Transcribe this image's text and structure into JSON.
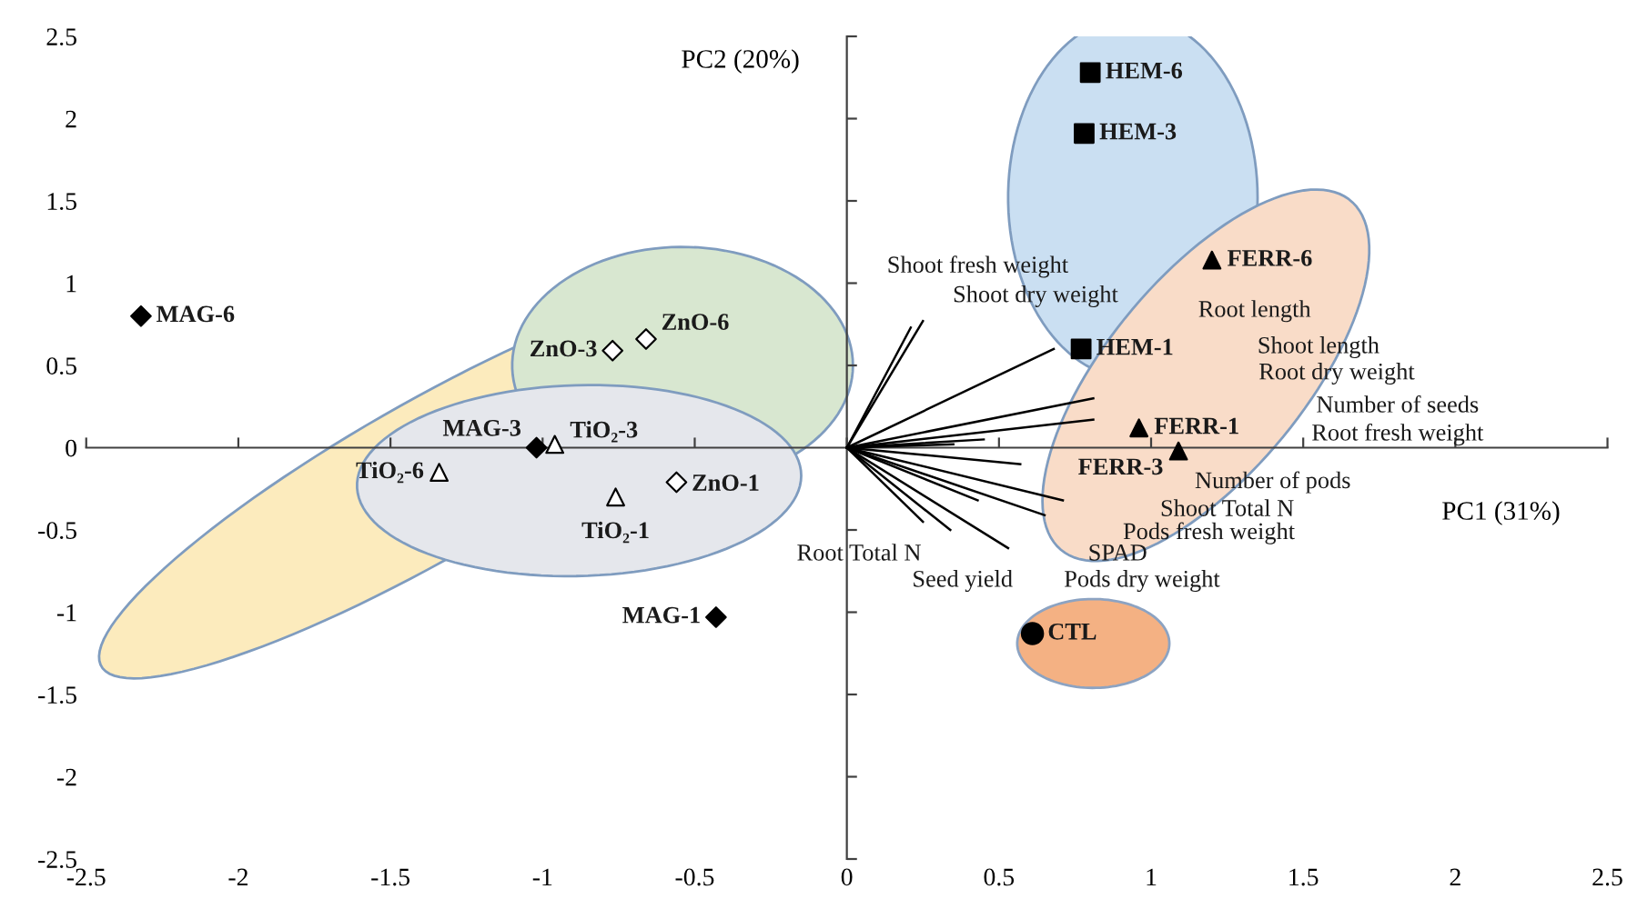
{
  "chart_data": {
    "type": "scatter",
    "xlabel": "PC1 (31%)",
    "ylabel": "PC2 (20%)",
    "xlim": [
      -2.5,
      2.5
    ],
    "ylim": [
      -2.5,
      2.5
    ],
    "xticks": [
      -2.5,
      -2,
      -1.5,
      -1,
      -0.5,
      0,
      0.5,
      1,
      1.5,
      2,
      2.5
    ],
    "yticks": [
      -2.5,
      -2,
      -1.5,
      -1,
      -0.5,
      0,
      0.5,
      1,
      1.5,
      2,
      2.5
    ],
    "legend": false,
    "series": [
      {
        "marker": "diamond",
        "color": "#000000",
        "x": [
          -2.32,
          -1.02,
          -0.43
        ],
        "values": [
          0.8,
          0.0,
          -1.03
        ]
      },
      {
        "marker": "triangle",
        "color": "#ffffff",
        "x": [
          -0.96,
          -1.34,
          -0.76
        ],
        "values": [
          0.02,
          -0.15,
          -0.3
        ]
      },
      {
        "marker": "diamond",
        "color": "#ffffff",
        "x": [
          -0.77,
          -0.66,
          -0.56
        ],
        "values": [
          0.59,
          0.66,
          -0.21
        ]
      },
      {
        "marker": "square",
        "color": "#000000",
        "x": [
          0.8,
          0.78,
          0.77
        ],
        "values": [
          2.28,
          1.91,
          0.6
        ]
      },
      {
        "marker": "triangle",
        "color": "#000000",
        "x": [
          1.2,
          0.96,
          1.09
        ],
        "values": [
          1.14,
          0.12,
          -0.02
        ]
      },
      {
        "marker": "circle",
        "color": "#000000",
        "x": [
          0.61
        ],
        "values": [
          -1.13
        ]
      },
      {
        "type": "line",
        "color": "#000000",
        "x": [
          0,
          0.21
        ],
        "values": [
          0,
          0.73
        ]
      },
      {
        "type": "line",
        "color": "#000000",
        "x": [
          0,
          0.25
        ],
        "values": [
          0,
          0.77
        ]
      },
      {
        "type": "line",
        "color": "#000000",
        "x": [
          0,
          0.68
        ],
        "values": [
          0,
          0.6
        ]
      },
      {
        "type": "line",
        "color": "#000000",
        "x": [
          0,
          0.81
        ],
        "values": [
          0,
          0.3
        ]
      },
      {
        "type": "line",
        "color": "#000000",
        "x": [
          0,
          0.81
        ],
        "values": [
          0,
          0.17
        ]
      },
      {
        "type": "line",
        "color": "#000000",
        "x": [
          0,
          0.45
        ],
        "values": [
          0,
          0.05
        ]
      },
      {
        "type": "line",
        "color": "#000000",
        "x": [
          0,
          0.35
        ],
        "values": [
          0,
          0.02
        ]
      },
      {
        "type": "line",
        "color": "#000000",
        "x": [
          0,
          0.57
        ],
        "values": [
          0,
          -0.1
        ]
      },
      {
        "type": "line",
        "color": "#000000",
        "x": [
          0,
          0.71
        ],
        "values": [
          0,
          -0.32
        ]
      },
      {
        "type": "line",
        "color": "#000000",
        "x": [
          0,
          0.65
        ],
        "values": [
          0,
          -0.41
        ]
      },
      {
        "type": "line",
        "color": "#000000",
        "x": [
          0,
          0.53
        ],
        "values": [
          0,
          -0.61
        ]
      },
      {
        "type": "line",
        "color": "#000000",
        "x": [
          0,
          0.43
        ],
        "values": [
          0,
          -0.32
        ]
      },
      {
        "type": "line",
        "color": "#000000",
        "x": [
          0,
          0.34
        ],
        "values": [
          0,
          -0.5
        ]
      },
      {
        "type": "line",
        "color": "#000000",
        "x": [
          0,
          0.25
        ],
        "values": [
          0,
          -0.45
        ]
      }
    ],
    "annotations": [
      {
        "text": "MAG-6",
        "x": -2.32,
        "y": 0.8
      },
      {
        "text": "MAG-3",
        "x": -1.02,
        "y": 0.0
      },
      {
        "text": "MAG-1",
        "x": -0.43,
        "y": -1.03
      },
      {
        "text": "TiO₂-3",
        "x": -0.96,
        "y": 0.02
      },
      {
        "text": "TiO₂-6",
        "x": -1.34,
        "y": -0.15
      },
      {
        "text": "TiO₂-1",
        "x": -0.76,
        "y": -0.3
      },
      {
        "text": "ZnO-3",
        "x": -0.77,
        "y": 0.59
      },
      {
        "text": "ZnO-6",
        "x": -0.66,
        "y": 0.66
      },
      {
        "text": "ZnO-1",
        "x": -0.56,
        "y": -0.21
      },
      {
        "text": "HEM-6",
        "x": 0.8,
        "y": 2.28
      },
      {
        "text": "HEM-3",
        "x": 0.78,
        "y": 1.91
      },
      {
        "text": "HEM-1",
        "x": 0.77,
        "y": 0.6
      },
      {
        "text": "FERR-6",
        "x": 1.2,
        "y": 1.14
      },
      {
        "text": "FERR-1",
        "x": 0.96,
        "y": 0.12
      },
      {
        "text": "FERR-3",
        "x": 1.09,
        "y": -0.02
      },
      {
        "text": "CTL",
        "x": 0.61,
        "y": -1.13
      },
      "Shoot fresh weight",
      "Shoot dry weight",
      "Root length",
      "Shoot length",
      "Root dry weight",
      "Number of seeds",
      "Root fresh weight",
      "Number of pods",
      "Shoot Total N",
      "Pods fresh weight",
      "SPAD",
      "Pods dry weight",
      "Root Total N",
      "Seed yield"
    ]
  }
}
